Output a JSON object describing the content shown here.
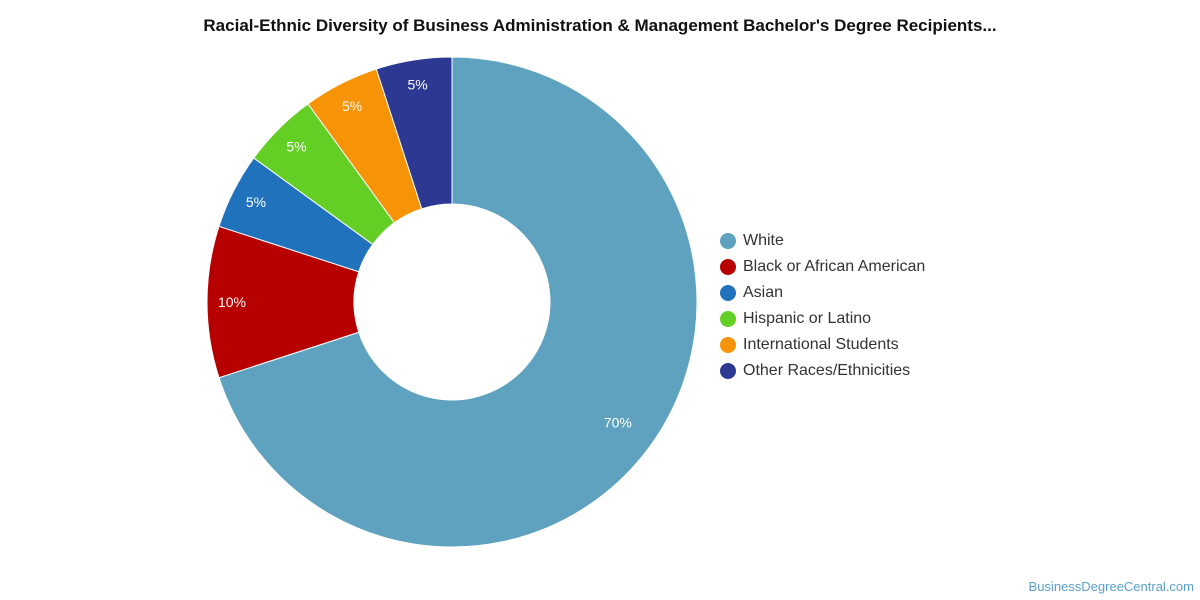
{
  "chart_data": {
    "type": "pie",
    "title": "Racial-Ethnic Diversity of Business Administration & Management Bachelor's Degree Recipients...",
    "donut": true,
    "legend_position": "right",
    "slices": [
      {
        "label": "White",
        "value": 70,
        "display": "70%",
        "color": "#5ea2c0"
      },
      {
        "label": "Black or African American",
        "value": 10,
        "display": "10%",
        "color": "#b70000"
      },
      {
        "label": "Asian",
        "value": 5,
        "display": "5%",
        "color": "#1f72bb"
      },
      {
        "label": "Hispanic or Latino",
        "value": 5,
        "display": "5%",
        "color": "#63cf25"
      },
      {
        "label": "International Students",
        "value": 5,
        "display": "5%",
        "color": "#f79306"
      },
      {
        "label": "Other Races/Ethnicities",
        "value": 5,
        "display": "5%",
        "color": "#2c3892"
      }
    ]
  },
  "source_credit": "BusinessDegreeCentral.com"
}
